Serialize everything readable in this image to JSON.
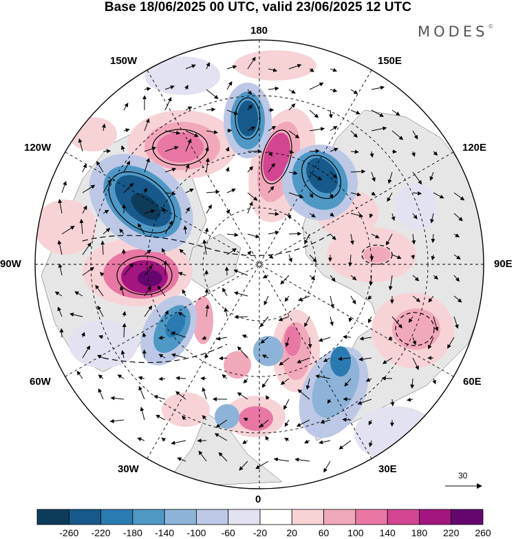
{
  "title": "Base 18/06/2025 00 UTC, valid 23/06/2025 12 UTC",
  "brand": "MODES",
  "brand_mark": "©",
  "longitude_labels": {
    "top": "180",
    "bottom": "0",
    "left": "90W",
    "right": "90E",
    "upper_left": "150W",
    "upper_right": "150E",
    "left_upper": "120W",
    "right_upper": "120E",
    "left_lower": "60W",
    "right_lower": "60E",
    "lower_left": "30W",
    "lower_right": "30E"
  },
  "reference_vector": {
    "label": "30"
  },
  "colorbar": {
    "tick_labels": [
      "-260",
      "-220",
      "-180",
      "-140",
      "-100",
      "-60",
      "-20",
      "20",
      "60",
      "100",
      "140",
      "180",
      "220",
      "260"
    ],
    "colors": [
      "#0d3b5c",
      "#16598a",
      "#2a7bb2",
      "#4f98c6",
      "#8db3d8",
      "#bcc8e6",
      "#e2e2f2",
      "#ffffff",
      "#f7d3d6",
      "#f2a8bb",
      "#e877a4",
      "#d14591",
      "#a3157f",
      "#65066f"
    ]
  },
  "colors": {
    "land": "#e6e6e6",
    "ocean": "#ffffff",
    "grid": "#000000"
  }
}
